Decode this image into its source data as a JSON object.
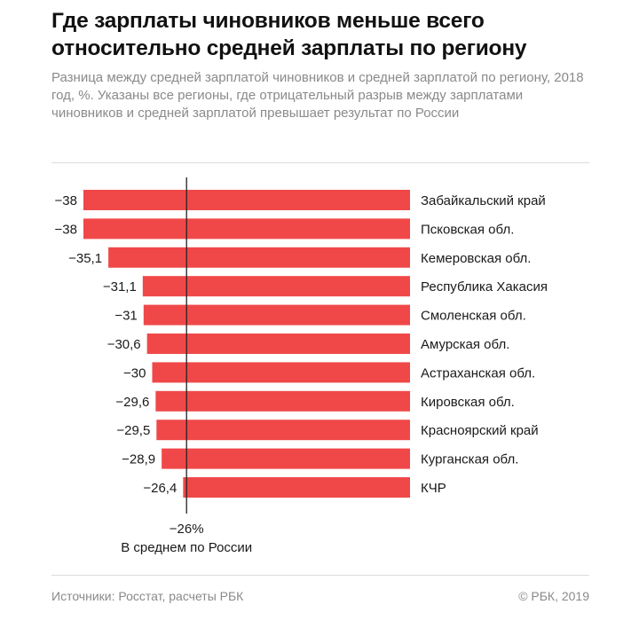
{
  "header": {
    "title": "Где зарплаты чиновников меньше всего относительно средней зарплаты по региону",
    "subtitle": "Разница между средней зарплатой чиновников и средней зарплатой по региону, 2018 год, %. Указаны все регионы, где отрицательный разрыв между зарплатами чиновников и средней зарплатой превышает результат по России"
  },
  "chart_data": {
    "type": "bar",
    "orientation": "horizontal",
    "categories": [
      "Забайкальский край",
      "Псковская обл.",
      "Кемеровская обл.",
      "Республика Хакасия",
      "Смоленская обл.",
      "Амурская обл.",
      "Астраханская обл.",
      "Кировская обл.",
      "Красноярский край",
      "Курганская обл.",
      "КЧР"
    ],
    "values": [
      -38,
      -38,
      -35.1,
      -31.1,
      -31,
      -30.6,
      -30,
      -29.6,
      -29.5,
      -28.9,
      -26.4
    ],
    "value_labels": [
      "−38",
      "−38",
      "−35,1",
      "−31,1",
      "−31",
      "−30,6",
      "−30",
      "−29,6",
      "−29,5",
      "−28,9",
      "−26,4"
    ],
    "xlim": [
      -38,
      0
    ],
    "reference": {
      "value": -26,
      "label": "−26%",
      "caption": "В среднем по России"
    },
    "bar_color": "#f04848",
    "grid": false,
    "legend": false
  },
  "footer": {
    "source": "Источники: Росстат, расчеты РБК",
    "copyright": "© РБК, 2019"
  }
}
